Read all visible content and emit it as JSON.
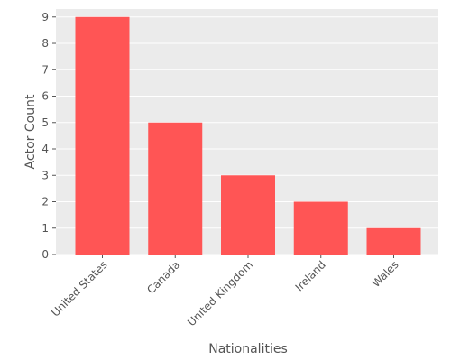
{
  "chart_data": {
    "type": "bar",
    "title": "",
    "xlabel": "Nationalities",
    "ylabel": "Actor Count",
    "categories": [
      "United States",
      "Canada",
      "United Kingdom",
      "Ireland",
      "Wales"
    ],
    "values": [
      9,
      5,
      3,
      2,
      1
    ],
    "ylim": [
      0,
      9.3
    ],
    "yticks": [
      0,
      1,
      2,
      3,
      4,
      5,
      6,
      7,
      8,
      9
    ],
    "grid": true,
    "legend": "none",
    "colors": {
      "bar": "#ff5555",
      "plot_background": "#ebebeb",
      "grid": "#ffffff",
      "text": "#555555"
    }
  }
}
